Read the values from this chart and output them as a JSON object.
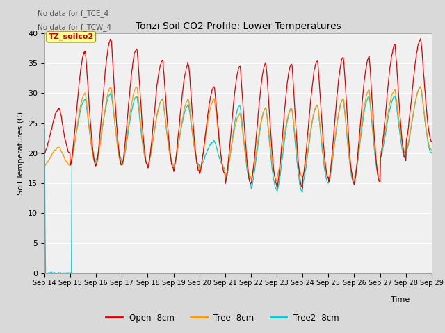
{
  "title": "Tonzi Soil CO2 Profile: Lower Temperatures",
  "xlabel": "Time",
  "ylabel": "Soil Temperatures (C)",
  "annotation_lines": [
    "No data for f_TCE_4",
    "No data for f_TCW_4"
  ],
  "watermark": "TZ_soilco2",
  "ylim": [
    0,
    40
  ],
  "num_days": 15,
  "bg_color": "#d9d9d9",
  "plot_bg_color": "#f0f0f0",
  "line_colors": {
    "open": "#dd0000",
    "tree": "#ff9900",
    "tree2": "#00cccc"
  },
  "legend_labels": [
    "Open -8cm",
    "Tree -8cm",
    "Tree2 -8cm"
  ],
  "tick_labels": [
    "Sep 14",
    "Sep 15",
    "Sep 16",
    "Sep 17",
    "Sep 18",
    "Sep 19",
    "Sep 20",
    "Sep 21",
    "Sep 22",
    "Sep 23",
    "Sep 24",
    "Sep 25",
    "Sep 26",
    "Sep 27",
    "Sep 28",
    "Sep 29"
  ],
  "yticks": [
    0,
    5,
    10,
    15,
    20,
    25,
    30,
    35,
    40
  ]
}
